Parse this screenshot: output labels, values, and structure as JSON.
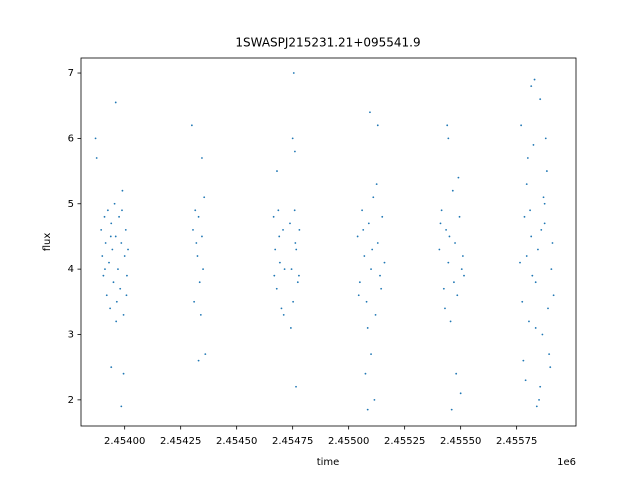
{
  "chart_data": {
    "type": "scatter",
    "title": "1SWASPJ215231.21+095541.9",
    "xlabel": "time",
    "ylabel": "flux",
    "x_offset_label": "1e6",
    "color": "#1f77b4",
    "xlim": [
      2453805,
      2456015
    ],
    "ylim": [
      1.6,
      7.23
    ],
    "xticks": [
      {
        "value": 2454000,
        "label": "2.45400"
      },
      {
        "value": 2454250,
        "label": "2.45425"
      },
      {
        "value": 2454500,
        "label": "2.45450"
      },
      {
        "value": 2454750,
        "label": "2.45475"
      },
      {
        "value": 2455000,
        "label": "2.45500"
      },
      {
        "value": 2455250,
        "label": "2.45525"
      },
      {
        "value": 2455500,
        "label": "2.45550"
      },
      {
        "value": 2455750,
        "label": "2.45575"
      }
    ],
    "yticks": [
      2,
      3,
      4,
      5,
      6,
      7
    ],
    "x": [
      2453895,
      2453900,
      2453905,
      2453910,
      2453915,
      2453920,
      2453925,
      2453930,
      2453935,
      2453940,
      2453945,
      2453950,
      2453955,
      2453960,
      2453965,
      2453970,
      2453975,
      2453980,
      2453985,
      2453990,
      2453995,
      2454000,
      2454005,
      2454010,
      2454015,
      2453912,
      2453938,
      2453962,
      2453988,
      2454008,
      2453870,
      2453960,
      2453875,
      2453940,
      2453985,
      2453995,
      2454305,
      2454315,
      2454325,
      2454335,
      2454345,
      2454355,
      2454310,
      2454330,
      2454350,
      2454320,
      2454340,
      2454300,
      2454360,
      2454330,
      2454345,
      2454665,
      2454672,
      2454679,
      2454686,
      2454693,
      2454700,
      2454707,
      2454714,
      2454668,
      2454690,
      2454710,
      2454680,
      2454738,
      2454745,
      2454752,
      2454759,
      2454766,
      2454773,
      2454780,
      2454742,
      2454762,
      2454778,
      2454755,
      2454750,
      2454765,
      2454760,
      2455040,
      2455050,
      2455060,
      2455070,
      2455080,
      2455090,
      2455100,
      2455110,
      2455120,
      2455130,
      2455140,
      2455150,
      2455160,
      2455045,
      2455065,
      2455085,
      2455105,
      2455125,
      2455145,
      2455075,
      2455095,
      2455115,
      2455085,
      2455130,
      2455100,
      2455405,
      2455415,
      2455425,
      2455435,
      2455445,
      2455455,
      2455465,
      2455475,
      2455485,
      2455495,
      2455505,
      2455515,
      2455410,
      2455430,
      2455450,
      2455470,
      2455490,
      2455510,
      2455440,
      2455460,
      2455480,
      2455445,
      2455500,
      2455765,
      2455775,
      2455785,
      2455795,
      2455805,
      2455815,
      2455825,
      2455835,
      2455845,
      2455855,
      2455865,
      2455875,
      2455885,
      2455895,
      2455905,
      2455915,
      2455770,
      2455790,
      2455810,
      2455830,
      2455850,
      2455870,
      2455890,
      2455910,
      2455780,
      2455800,
      2455820,
      2455840,
      2455860,
      2455880,
      2455900,
      2455795,
      2455835,
      2455875,
      2455815,
      2455855
    ],
    "values": [
      4.6,
      4.2,
      3.9,
      4.8,
      4.4,
      3.6,
      4.9,
      4.1,
      3.4,
      4.7,
      4.3,
      3.8,
      5.0,
      4.5,
      3.5,
      4.0,
      4.8,
      3.7,
      4.4,
      5.2,
      3.3,
      4.2,
      4.6,
      3.9,
      4.3,
      4.0,
      4.5,
      3.2,
      4.9,
      3.6,
      6.0,
      6.55,
      5.7,
      2.5,
      1.9,
      2.4,
      4.6,
      4.9,
      4.2,
      3.8,
      4.5,
      5.1,
      3.5,
      4.8,
      4.0,
      4.4,
      3.3,
      6.2,
      2.7,
      2.6,
      5.7,
      4.8,
      4.3,
      3.7,
      4.9,
      4.1,
      3.4,
      4.6,
      4.0,
      3.9,
      4.5,
      3.3,
      5.5,
      4.7,
      4.0,
      3.5,
      4.9,
      4.3,
      3.8,
      4.6,
      3.1,
      4.4,
      3.9,
      7.0,
      6.0,
      2.2,
      5.8,
      4.5,
      3.8,
      4.9,
      4.2,
      3.5,
      4.7,
      4.0,
      5.1,
      3.3,
      4.4,
      3.9,
      4.8,
      4.1,
      3.6,
      4.6,
      3.1,
      4.3,
      5.3,
      3.7,
      2.4,
      6.4,
      2.0,
      1.85,
      6.2,
      2.7,
      4.3,
      4.9,
      3.7,
      4.6,
      4.1,
      3.2,
      5.2,
      4.4,
      3.6,
      4.8,
      4.0,
      3.9,
      4.7,
      3.4,
      4.5,
      3.8,
      5.4,
      4.2,
      6.2,
      1.85,
      2.4,
      6.0,
      2.1,
      4.1,
      3.5,
      4.8,
      5.3,
      3.2,
      4.5,
      5.9,
      3.8,
      4.3,
      6.6,
      3.0,
      4.7,
      5.5,
      2.7,
      4.0,
      3.6,
      6.2,
      2.3,
      4.9,
      6.9,
      2.0,
      5.1,
      3.4,
      4.4,
      2.6,
      5.7,
      3.9,
      1.9,
      4.6,
      6.0,
      2.5,
      4.2,
      3.1,
      5.0,
      6.8,
      2.2
    ]
  }
}
